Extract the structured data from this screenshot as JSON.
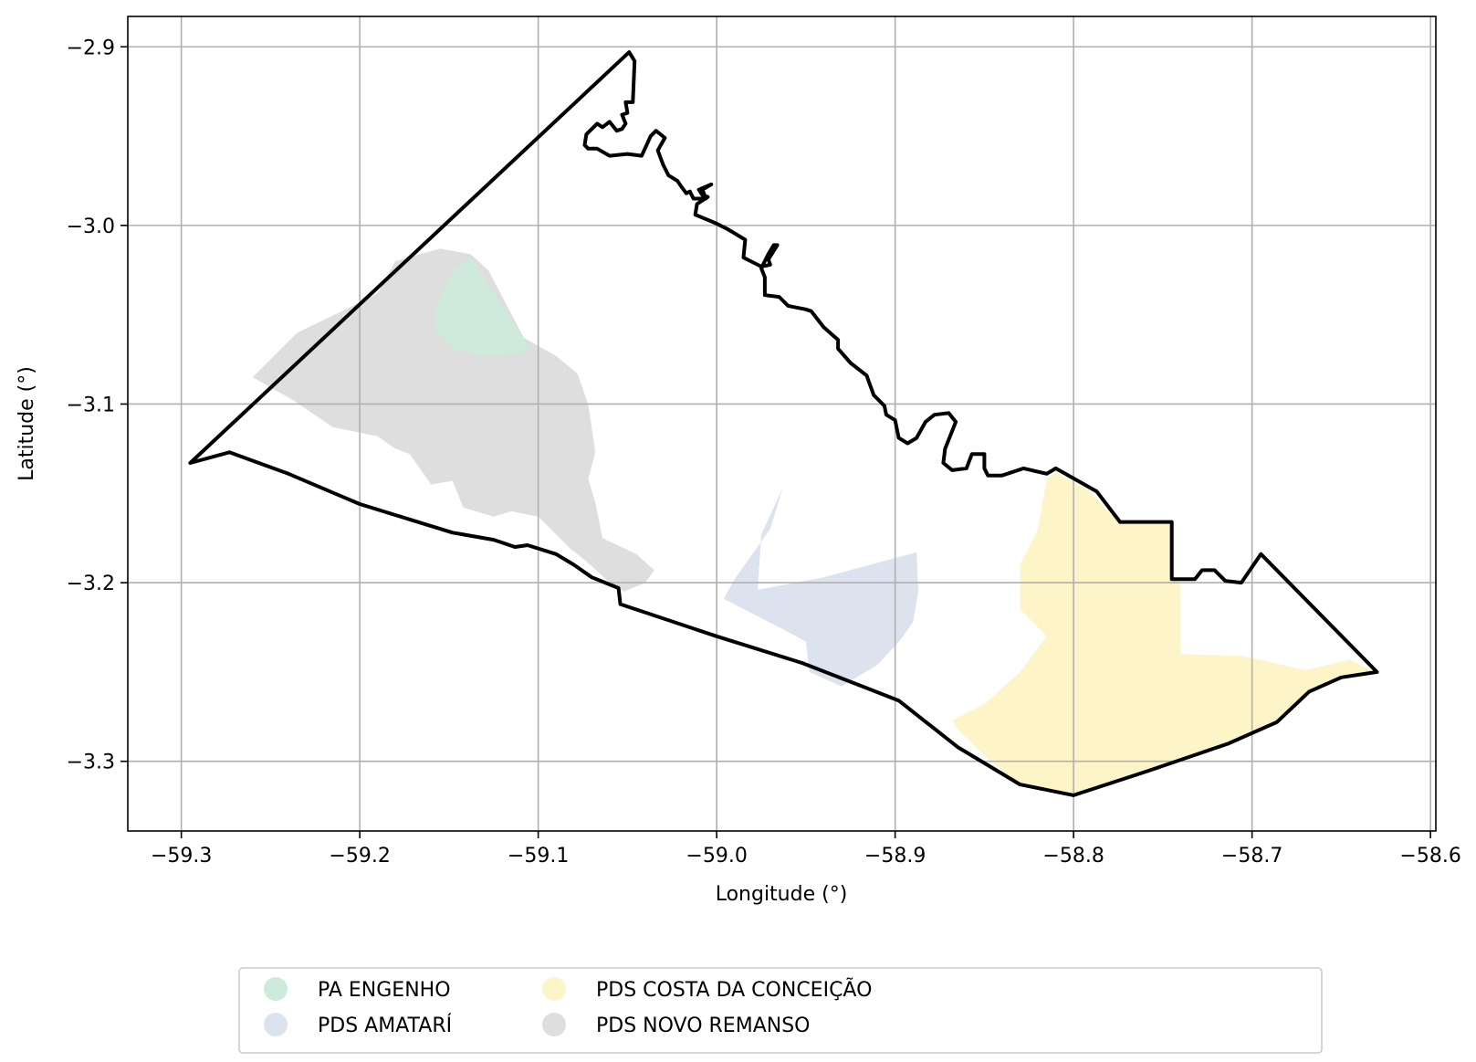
{
  "chart_data": {
    "type": "map",
    "xlabel": "Longitude (°)",
    "ylabel": "Latitude (°)",
    "xlim": [
      -59.33,
      -58.597
    ],
    "ylim": [
      -3.339,
      -2.883
    ],
    "grid": true,
    "x_ticks": [
      -59.3,
      -59.2,
      -59.1,
      -59.0,
      -58.9,
      -58.8,
      -58.7,
      -58.6
    ],
    "x_tick_labels": [
      "−59.3",
      "−59.2",
      "−59.1",
      "−59.0",
      "−58.9",
      "−58.8",
      "−58.7",
      "−58.6"
    ],
    "y_ticks": [
      -2.9,
      -3.0,
      -3.1,
      -3.2,
      -3.3
    ],
    "y_tick_labels": [
      "−2.9",
      "−3.0",
      "−3.1",
      "−3.2",
      "−3.3"
    ],
    "legend_placement": "bottom-center",
    "legend": [
      {
        "name": "PA ENGENHO",
        "color": "#cdeadb"
      },
      {
        "name": "PDS AMATARÍ",
        "color": "#dde2ef"
      },
      {
        "name": "PDS COSTA DA CONCEIÇÃO",
        "color": "#fdf5c7"
      },
      {
        "name": "PDS NOVO REMANSO",
        "color": "#dedede"
      }
    ],
    "boundary": {
      "color": "#000000",
      "coords": [
        [
          -59.295,
          -3.133
        ],
        [
          -59.273,
          -3.127
        ],
        [
          -59.24,
          -3.139
        ],
        [
          -59.2,
          -3.156
        ],
        [
          -59.148,
          -3.172
        ],
        [
          -59.125,
          -3.176
        ],
        [
          -59.113,
          -3.18
        ],
        [
          -59.106,
          -3.179
        ],
        [
          -59.09,
          -3.184
        ],
        [
          -59.08,
          -3.19
        ],
        [
          -59.07,
          -3.197
        ],
        [
          -59.055,
          -3.203
        ],
        [
          -59.054,
          -3.212
        ],
        [
          -59.0,
          -3.23
        ],
        [
          -58.952,
          -3.245
        ],
        [
          -58.898,
          -3.266
        ],
        [
          -58.865,
          -3.292
        ],
        [
          -58.83,
          -3.313
        ],
        [
          -58.8,
          -3.319
        ],
        [
          -58.76,
          -3.306
        ],
        [
          -58.713,
          -3.29
        ],
        [
          -58.686,
          -3.278
        ],
        [
          -58.668,
          -3.261
        ],
        [
          -58.65,
          -3.253
        ],
        [
          -58.63,
          -3.25
        ],
        [
          -58.695,
          -3.184
        ],
        [
          -58.706,
          -3.2
        ],
        [
          -58.715,
          -3.199
        ],
        [
          -58.721,
          -3.193
        ],
        [
          -58.728,
          -3.193
        ],
        [
          -58.732,
          -3.198
        ],
        [
          -58.745,
          -3.198
        ],
        [
          -58.745,
          -3.166
        ],
        [
          -58.774,
          -3.166
        ],
        [
          -58.787,
          -3.149
        ],
        [
          -58.81,
          -3.136
        ],
        [
          -58.815,
          -3.139
        ],
        [
          -58.828,
          -3.136
        ],
        [
          -58.84,
          -3.14
        ],
        [
          -58.848,
          -3.14
        ],
        [
          -58.85,
          -3.136
        ],
        [
          -58.85,
          -3.128
        ],
        [
          -58.857,
          -3.128
        ],
        [
          -58.86,
          -3.136
        ],
        [
          -58.868,
          -3.137
        ],
        [
          -58.873,
          -3.133
        ],
        [
          -58.872,
          -3.125
        ],
        [
          -58.866,
          -3.11
        ],
        [
          -58.87,
          -3.105
        ],
        [
          -58.878,
          -3.106
        ],
        [
          -58.883,
          -3.11
        ],
        [
          -58.888,
          -3.119
        ],
        [
          -58.893,
          -3.122
        ],
        [
          -58.898,
          -3.119
        ],
        [
          -58.9,
          -3.109
        ],
        [
          -58.905,
          -3.106
        ],
        [
          -58.906,
          -3.101
        ],
        [
          -58.912,
          -3.095
        ],
        [
          -58.916,
          -3.084
        ],
        [
          -58.925,
          -3.077
        ],
        [
          -58.932,
          -3.069
        ],
        [
          -58.932,
          -3.064
        ],
        [
          -58.94,
          -3.057
        ],
        [
          -58.947,
          -3.048
        ],
        [
          -58.95,
          -3.047
        ],
        [
          -58.96,
          -3.045
        ],
        [
          -58.965,
          -3.04
        ],
        [
          -58.973,
          -3.039
        ],
        [
          -58.973,
          -3.029
        ],
        [
          -58.975,
          -3.024
        ],
        [
          -58.971,
          -3.016
        ],
        [
          -58.968,
          -3.011
        ],
        [
          -58.966,
          -3.011
        ],
        [
          -58.971,
          -3.019
        ],
        [
          -58.97,
          -3.022
        ],
        [
          -58.975,
          -3.023
        ],
        [
          -58.981,
          -3.02
        ],
        [
          -58.985,
          -3.018
        ],
        [
          -58.984,
          -3.008
        ],
        [
          -58.994,
          -3.002
        ],
        [
          -59.0,
          -2.999
        ],
        [
          -59.012,
          -2.994
        ],
        [
          -59.011,
          -2.988
        ],
        [
          -59.005,
          -2.984
        ],
        [
          -59.008,
          -2.983
        ],
        [
          -59.01,
          -2.98
        ],
        [
          -59.003,
          -2.977
        ],
        [
          -59.008,
          -2.98
        ],
        [
          -59.006,
          -2.985
        ],
        [
          -59.013,
          -2.985
        ],
        [
          -59.015,
          -2.981
        ],
        [
          -59.017,
          -2.982
        ],
        [
          -59.02,
          -2.978
        ],
        [
          -59.022,
          -2.975
        ],
        [
          -59.027,
          -2.972
        ],
        [
          -59.03,
          -2.966
        ],
        [
          -59.033,
          -2.958
        ],
        [
          -59.029,
          -2.951
        ],
        [
          -59.034,
          -2.947
        ],
        [
          -59.037,
          -2.95
        ],
        [
          -59.042,
          -2.961
        ],
        [
          -59.05,
          -2.96
        ],
        [
          -59.06,
          -2.961
        ],
        [
          -59.067,
          -2.957
        ],
        [
          -59.072,
          -2.957
        ],
        [
          -59.074,
          -2.955
        ],
        [
          -59.073,
          -2.949
        ],
        [
          -59.067,
          -2.943
        ],
        [
          -59.064,
          -2.945
        ],
        [
          -59.06,
          -2.942
        ],
        [
          -59.056,
          -2.947
        ],
        [
          -59.053,
          -2.946
        ],
        [
          -59.051,
          -2.943
        ],
        [
          -59.053,
          -2.938
        ],
        [
          -59.05,
          -2.937
        ],
        [
          -59.051,
          -2.931
        ],
        [
          -59.047,
          -2.931
        ],
        [
          -59.046,
          -2.908
        ],
        [
          -59.049,
          -2.903
        ],
        [
          -59.295,
          -3.133
        ]
      ]
    },
    "regions": [
      {
        "name": "PDS NOVO REMANSO",
        "color": "#dedede",
        "coords": [
          [
            -59.155,
            -3.013
          ],
          [
            -59.138,
            -3.016
          ],
          [
            -59.128,
            -3.025
          ],
          [
            -59.108,
            -3.063
          ],
          [
            -59.09,
            -3.073
          ],
          [
            -59.078,
            -3.083
          ],
          [
            -59.072,
            -3.1
          ],
          [
            -59.068,
            -3.127
          ],
          [
            -59.072,
            -3.142
          ],
          [
            -59.068,
            -3.155
          ],
          [
            -59.064,
            -3.175
          ],
          [
            -59.045,
            -3.184
          ],
          [
            -59.035,
            -3.193
          ],
          [
            -59.04,
            -3.2
          ],
          [
            -59.052,
            -3.205
          ],
          [
            -59.06,
            -3.2
          ],
          [
            -59.073,
            -3.188
          ],
          [
            -59.082,
            -3.181
          ],
          [
            -59.09,
            -3.173
          ],
          [
            -59.1,
            -3.163
          ],
          [
            -59.115,
            -3.16
          ],
          [
            -59.125,
            -3.163
          ],
          [
            -59.142,
            -3.158
          ],
          [
            -59.148,
            -3.143
          ],
          [
            -59.16,
            -3.145
          ],
          [
            -59.172,
            -3.128
          ],
          [
            -59.18,
            -3.125
          ],
          [
            -59.19,
            -3.118
          ],
          [
            -59.215,
            -3.113
          ],
          [
            -59.237,
            -3.098
          ],
          [
            -59.26,
            -3.085
          ],
          [
            -59.235,
            -3.06
          ],
          [
            -59.21,
            -3.048
          ],
          [
            -59.19,
            -3.038
          ],
          [
            -59.18,
            -3.02
          ]
        ]
      },
      {
        "name": "PA ENGENHO",
        "color": "#cdeadb",
        "coords": [
          [
            -59.138,
            -3.018
          ],
          [
            -59.146,
            -3.023
          ],
          [
            -59.157,
            -3.043
          ],
          [
            -59.158,
            -3.058
          ],
          [
            -59.148,
            -3.069
          ],
          [
            -59.132,
            -3.073
          ],
          [
            -59.11,
            -3.072
          ],
          [
            -59.105,
            -3.068
          ]
        ]
      },
      {
        "name": "PDS AMATARÍ",
        "color": "#dde2ef",
        "coords": [
          [
            -58.963,
            -3.147
          ],
          [
            -58.975,
            -3.173
          ],
          [
            -58.977,
            -3.204
          ],
          [
            -58.94,
            -3.197
          ],
          [
            -58.888,
            -3.183
          ],
          [
            -58.887,
            -3.205
          ],
          [
            -58.89,
            -3.222
          ],
          [
            -58.897,
            -3.232
          ],
          [
            -58.91,
            -3.246
          ],
          [
            -58.93,
            -3.258
          ],
          [
            -58.948,
            -3.25
          ],
          [
            -58.95,
            -3.233
          ],
          [
            -58.963,
            -3.226
          ],
          [
            -58.996,
            -3.209
          ],
          [
            -58.99,
            -3.198
          ],
          [
            -58.97,
            -3.17
          ]
        ]
      },
      {
        "name": "PDS COSTA DA CONCEIÇÃO",
        "color": "#fdf5c7",
        "coords": [
          [
            -58.815,
            -3.142
          ],
          [
            -58.81,
            -3.138
          ],
          [
            -58.792,
            -3.148
          ],
          [
            -58.775,
            -3.166
          ],
          [
            -58.745,
            -3.166
          ],
          [
            -58.745,
            -3.198
          ],
          [
            -58.74,
            -3.2
          ],
          [
            -58.74,
            -3.24
          ],
          [
            -58.705,
            -3.241
          ],
          [
            -58.67,
            -3.249
          ],
          [
            -58.645,
            -3.243
          ],
          [
            -58.632,
            -3.25
          ],
          [
            -58.65,
            -3.253
          ],
          [
            -58.668,
            -3.261
          ],
          [
            -58.686,
            -3.278
          ],
          [
            -58.713,
            -3.29
          ],
          [
            -58.76,
            -3.306
          ],
          [
            -58.8,
            -3.319
          ],
          [
            -58.83,
            -3.313
          ],
          [
            -58.85,
            -3.297
          ],
          [
            -58.865,
            -3.282
          ],
          [
            -58.868,
            -3.277
          ],
          [
            -58.85,
            -3.268
          ],
          [
            -58.83,
            -3.25
          ],
          [
            -58.815,
            -3.23
          ],
          [
            -58.83,
            -3.215
          ],
          [
            -58.83,
            -3.19
          ],
          [
            -58.82,
            -3.17
          ]
        ]
      }
    ]
  }
}
